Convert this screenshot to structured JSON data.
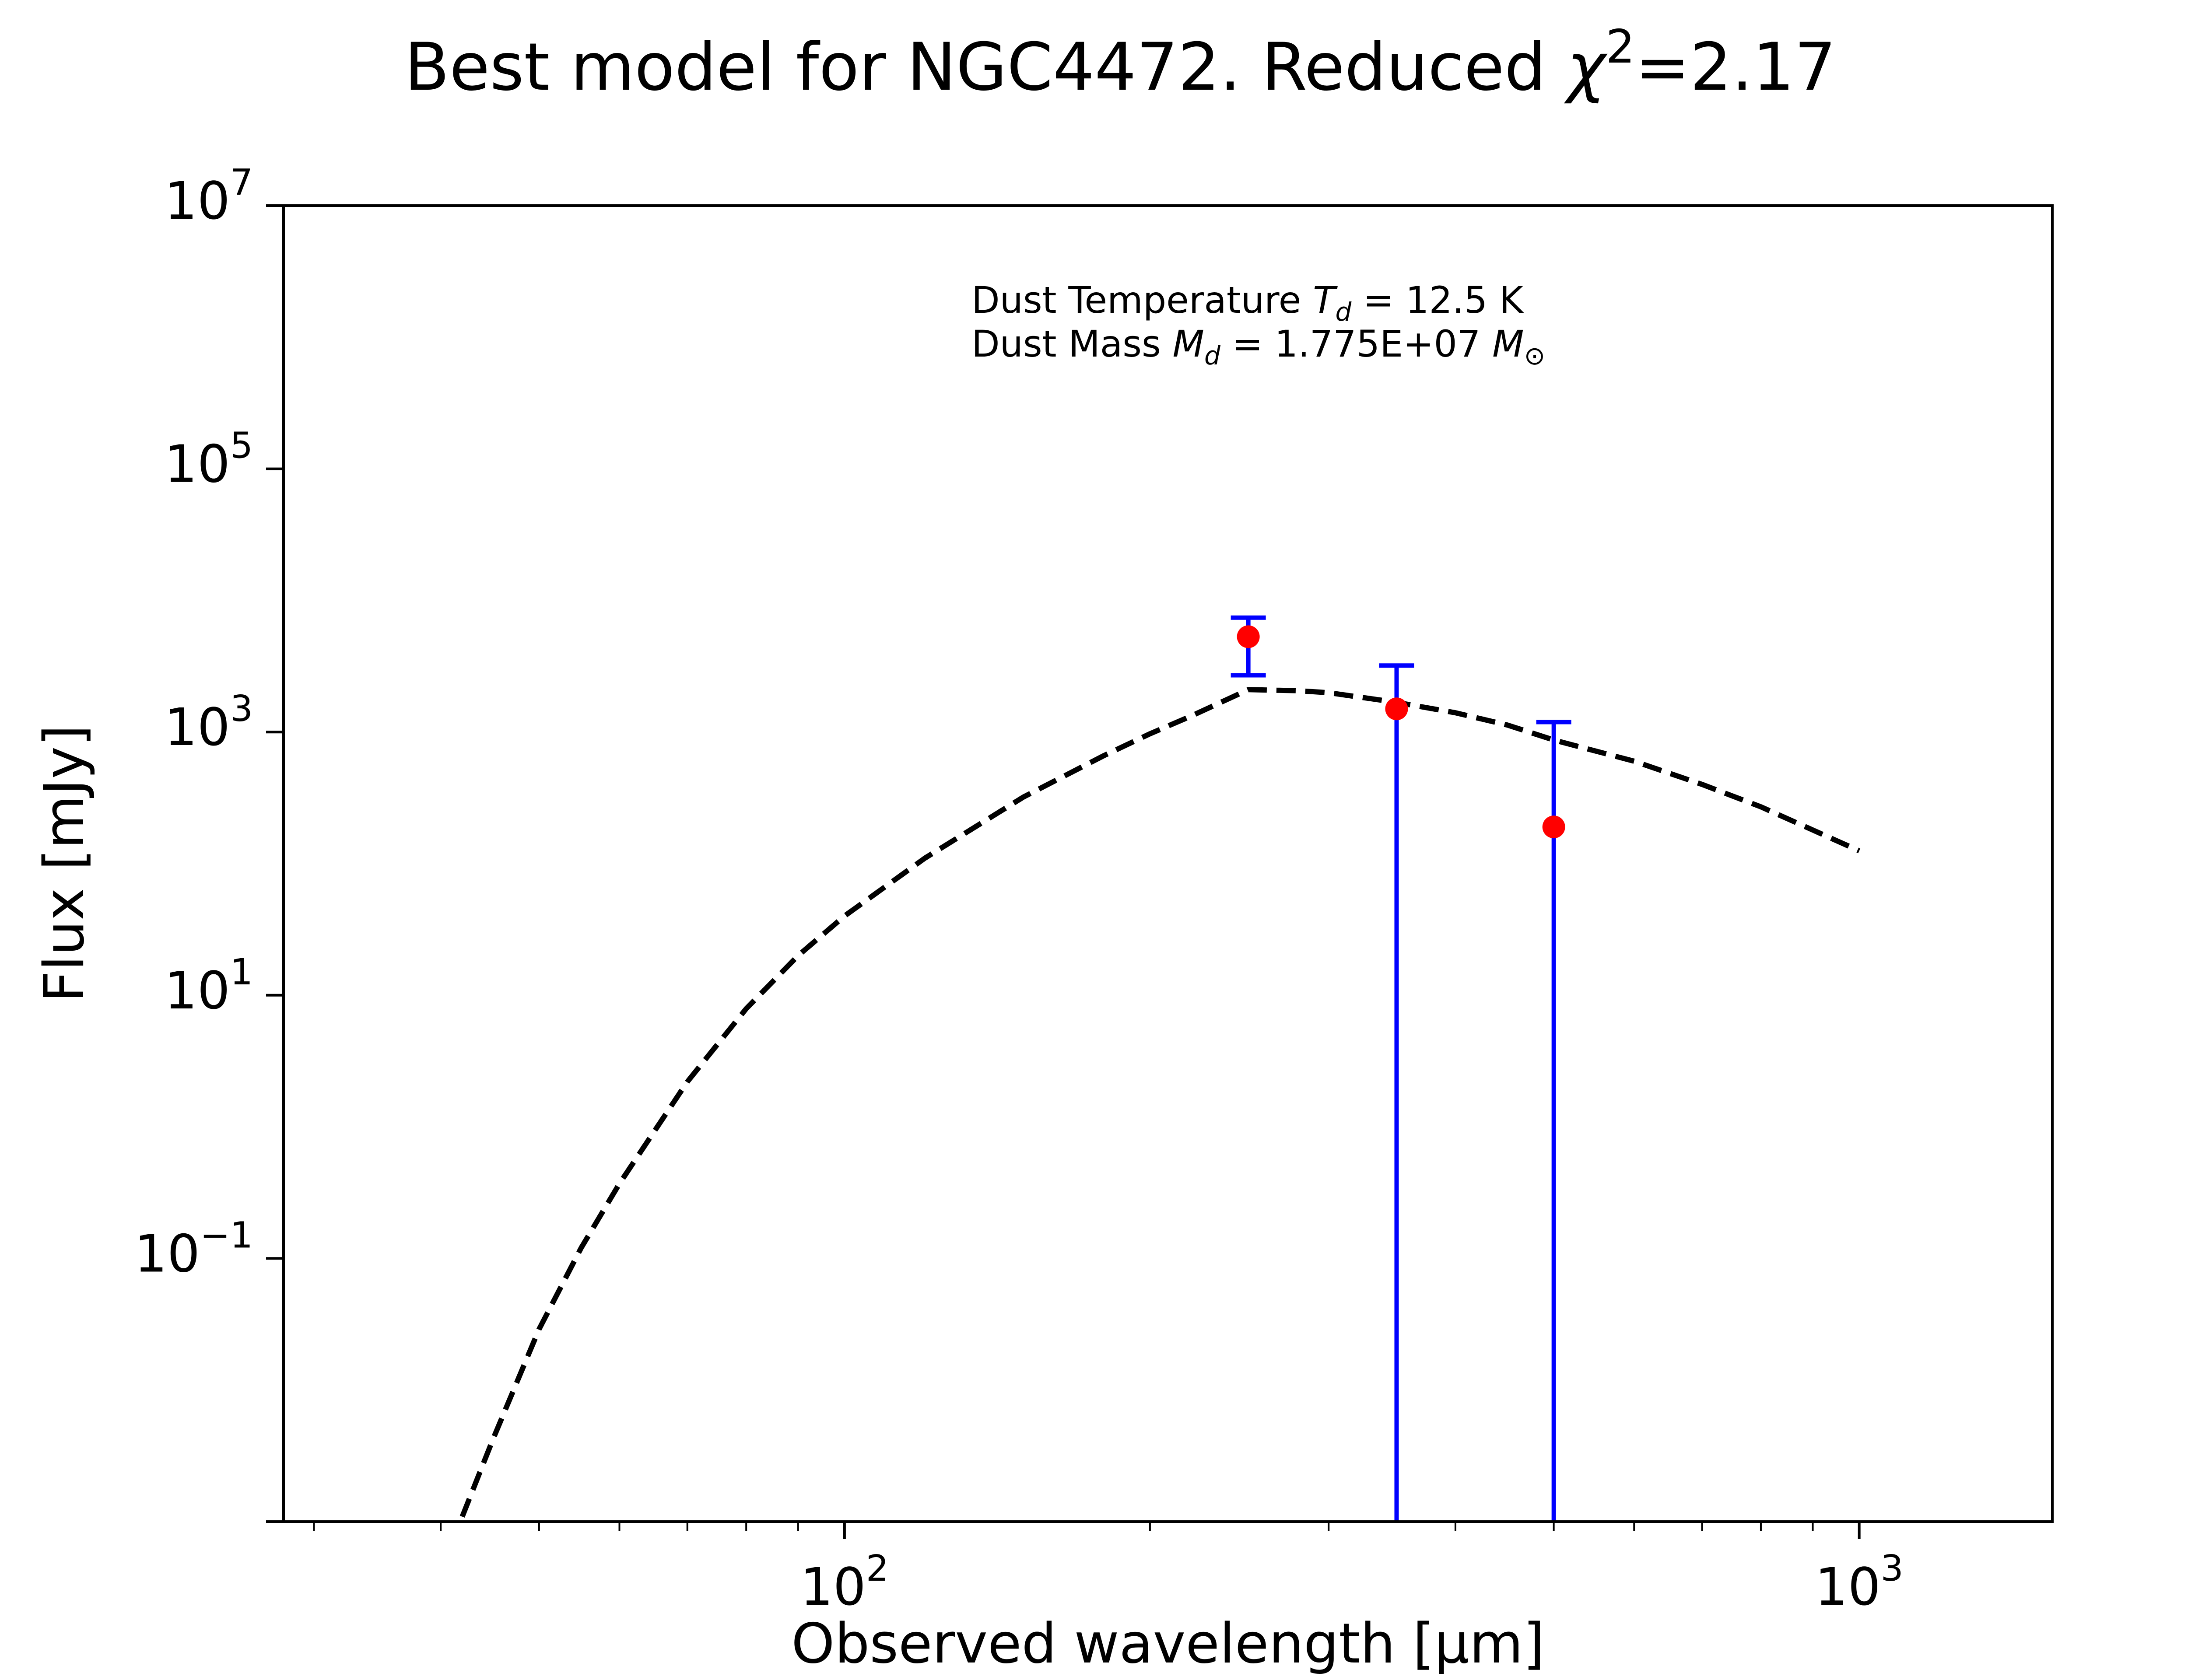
{
  "chart_data": {
    "type": "scatter",
    "title": "Best model for NGC4472. Reduced χ²=2.17",
    "title_parts": {
      "prefix": "Best model for NGC4472. Reduced ",
      "chi": "χ",
      "sup": "2",
      "suffix": "=2.17"
    },
    "xlabel": "Observed wavelength [μm]",
    "ylabel": "Flux [mJy]",
    "x_scale": "log",
    "y_scale": "log",
    "xlim": [
      28,
      1550
    ],
    "ylim": [
      0.001,
      10000000
    ],
    "grid": false,
    "x_ticks": [
      {
        "base": "10",
        "exp": "2",
        "value": 100
      },
      {
        "base": "10",
        "exp": "3",
        "value": 1000
      }
    ],
    "y_ticks": [
      {
        "base": "10",
        "exp": "7",
        "value": 10000000
      },
      {
        "base": "10",
        "exp": "5",
        "value": 100000
      },
      {
        "base": "10",
        "exp": "3",
        "value": 1000
      },
      {
        "base": "10",
        "exp": "1",
        "value": 10
      },
      {
        "base": "10",
        "exp": "−1",
        "value": 0.1
      }
    ],
    "annotation": {
      "line1_prefix": "Dust Temperature ",
      "line1_sym": "T",
      "line1_sub": "d",
      "line1_suffix": " = 12.5 K",
      "line2_prefix": "Dust Mass ",
      "line2_sym": "M",
      "line2_sub": "d",
      "line2_mid": " = 1.775E+07 ",
      "line2_sym2": "M",
      "line2_sub2": "⊙"
    },
    "series": [
      {
        "kind": "observed",
        "x": [
          250,
          350,
          500
        ],
        "y": [
          5300,
          1500,
          190
        ],
        "yerr_low": [
          2600,
          1500,
          190
        ],
        "yerr_high": [
          2100,
          1700,
          1000
        ],
        "point_color": "#ff0000",
        "errorbar_color": "#0000ff"
      },
      {
        "kind": "model",
        "line_style": "dashed",
        "line_color": "#000000",
        "x": [
          42,
          45,
          50,
          55,
          60,
          70,
          80,
          90,
          100,
          120,
          150,
          180,
          200,
          220,
          250,
          280,
          300,
          350,
          400,
          450,
          500,
          600,
          700,
          800,
          900,
          1000
        ],
        "y": [
          0.00109,
          0.00417,
          0.029,
          0.12,
          0.37,
          2.2,
          7.9,
          20,
          40,
          110,
          320,
          660,
          970,
          1330,
          2100,
          2060,
          1990,
          1680,
          1400,
          1130,
          870,
          600,
          400,
          270,
          180,
          125
        ]
      }
    ]
  }
}
